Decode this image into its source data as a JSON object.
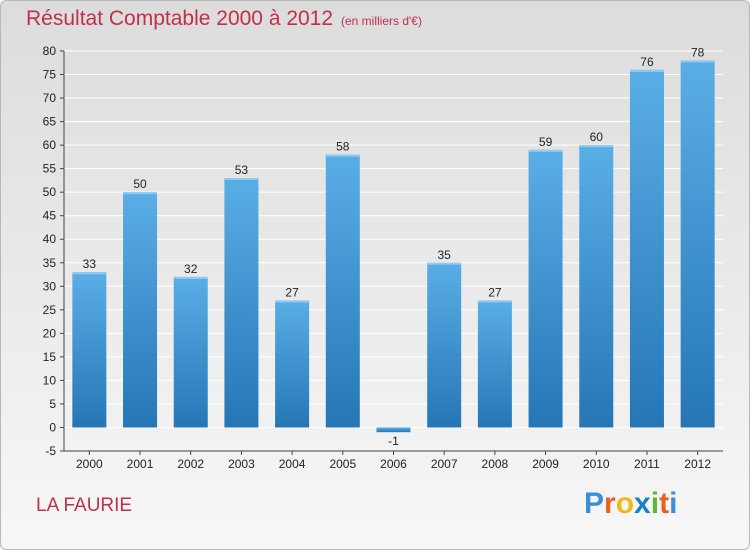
{
  "header": {
    "title": "Résultat Comptable 2000 à 2012",
    "subtitle": "(en milliers d'€)"
  },
  "footer": {
    "place": "LA FAURIE",
    "brand": "Proxiti"
  },
  "colors": {
    "title": "#c0304a",
    "bar_light": "#5aaee6",
    "bar_dark": "#2676b6",
    "grid": "#ffffff",
    "axis": "#444444",
    "text": "#222222"
  },
  "chart_data": {
    "type": "bar",
    "categories": [
      "2000",
      "2001",
      "2002",
      "2003",
      "2004",
      "2005",
      "2006",
      "2007",
      "2008",
      "2009",
      "2010",
      "2011",
      "2012"
    ],
    "values": [
      33,
      50,
      32,
      53,
      27,
      58,
      -1,
      35,
      27,
      59,
      60,
      76,
      78
    ],
    "ylim": [
      -5,
      80
    ],
    "yticks": [
      -5,
      0,
      5,
      10,
      15,
      20,
      25,
      30,
      35,
      40,
      45,
      50,
      55,
      60,
      65,
      70,
      75,
      80
    ],
    "grid": true,
    "data_labels": true
  }
}
